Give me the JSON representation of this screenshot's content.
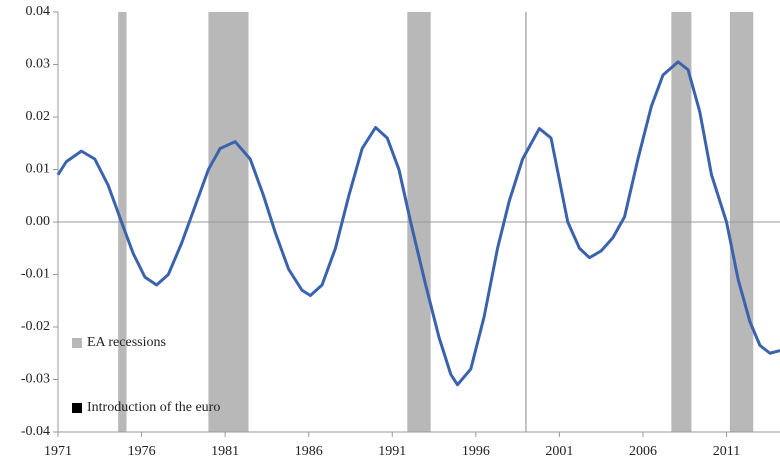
{
  "chart_data": {
    "type": "line",
    "x": [
      1971.0,
      1971.5,
      1972.4,
      1973.2,
      1974.0,
      1974.8,
      1975.5,
      1976.2,
      1976.9,
      1977.6,
      1978.4,
      1979.2,
      1980.0,
      1980.7,
      1981.6,
      1982.5,
      1983.3,
      1984.0,
      1984.8,
      1985.6,
      1986.1,
      1986.8,
      1987.6,
      1988.4,
      1989.2,
      1990.0,
      1990.7,
      1991.4,
      1992.1,
      1993.0,
      1993.8,
      1994.5,
      1994.9,
      1995.7,
      1996.5,
      1997.3,
      1998.0,
      1998.8,
      1999.8,
      2000.5,
      2001.5,
      2002.2,
      2002.8,
      2003.5,
      2004.2,
      2004.9,
      2005.7,
      2006.5,
      2007.2,
      2008.1,
      2008.7,
      2009.4,
      2010.1,
      2011.0,
      2011.7,
      2012.4,
      2013.0,
      2013.6,
      2014.2
    ],
    "series": [
      {
        "color": "#3a62ad",
        "values": [
          0.009,
          0.0115,
          0.0135,
          0.012,
          0.007,
          0.0,
          -0.006,
          -0.0105,
          -0.012,
          -0.01,
          -0.004,
          0.003,
          0.01,
          0.014,
          0.0153,
          0.012,
          0.005,
          -0.002,
          -0.009,
          -0.013,
          -0.014,
          -0.012,
          -0.005,
          0.005,
          0.014,
          0.018,
          0.016,
          0.01,
          0.0,
          -0.012,
          -0.022,
          -0.029,
          -0.031,
          -0.028,
          -0.018,
          -0.005,
          0.004,
          0.012,
          0.0178,
          0.016,
          0.0,
          -0.005,
          -0.0068,
          -0.0055,
          -0.003,
          0.001,
          0.012,
          0.022,
          0.028,
          0.0305,
          0.029,
          0.021,
          0.009,
          0.0,
          -0.011,
          -0.019,
          -0.0235,
          -0.025,
          -0.0245
        ]
      }
    ],
    "recessions": [
      [
        1974.6,
        1975.1
      ],
      [
        1980.0,
        1982.4
      ],
      [
        1991.9,
        1993.3
      ],
      [
        2007.7,
        2008.9
      ],
      [
        2011.2,
        2012.6
      ]
    ],
    "recession_color": "#b8b8b8",
    "euro_introduction": 1999,
    "euro_color": "#9a9a9a",
    "legend": [
      "EA recessions",
      "Introduction of the euro"
    ],
    "xlim": [
      1971,
      2014.2
    ],
    "xticks": [
      1971,
      1976,
      1981,
      1986,
      1991,
      1996,
      2001,
      2006,
      2011
    ],
    "ylim": [
      -0.04,
      0.04
    ],
    "yticks": [
      {
        "value": -0.04,
        "label": "-0.04"
      },
      {
        "value": -0.03,
        "label": "-0.03"
      },
      {
        "value": -0.02,
        "label": "-0.02"
      },
      {
        "value": -0.01,
        "label": "-0.01"
      },
      {
        "value": 0,
        "label": "0.00"
      },
      {
        "value": 0.01,
        "label": "0.01"
      },
      {
        "value": 0.02,
        "label": "0.02"
      },
      {
        "value": 0.03,
        "label": "0.03"
      },
      {
        "value": 0.04,
        "label": "0.04"
      }
    ]
  }
}
